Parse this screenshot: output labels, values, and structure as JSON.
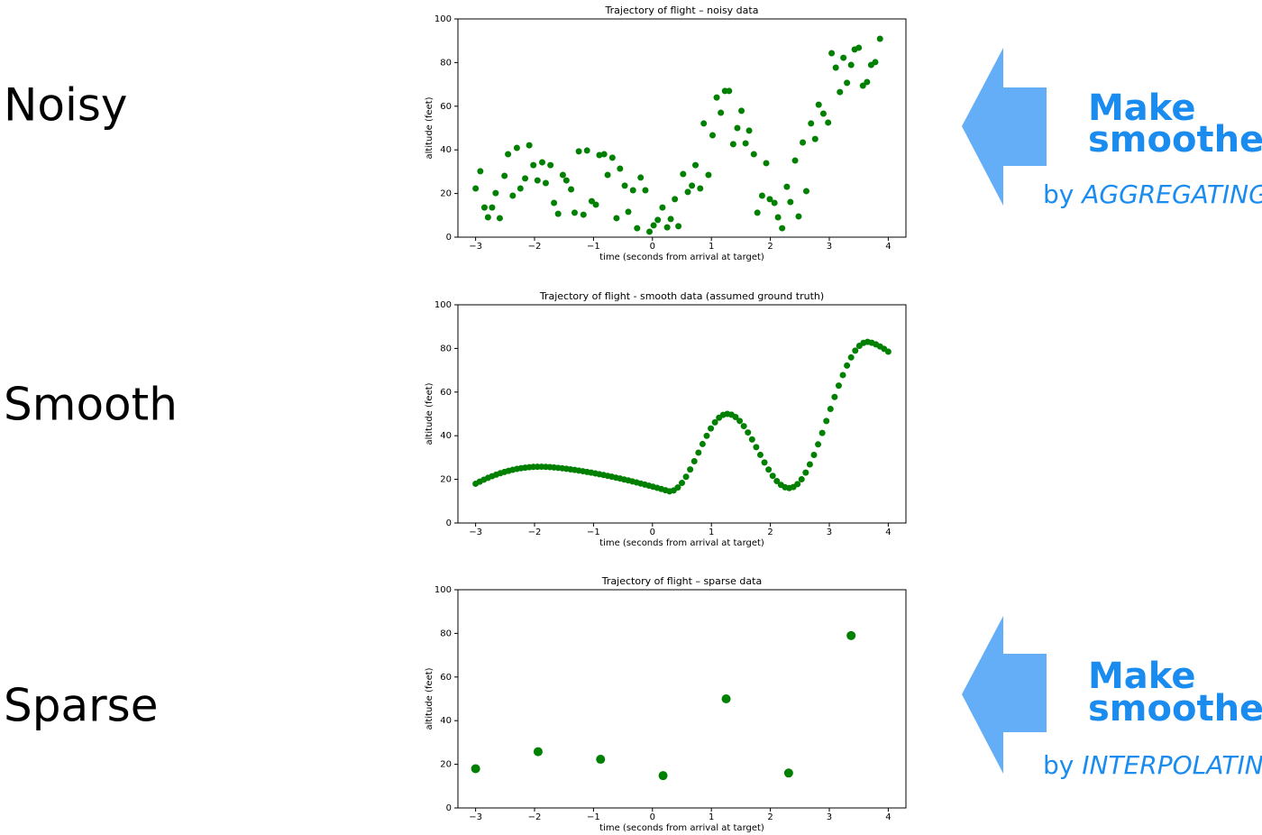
{
  "labels": [
    "Noisy",
    "Smooth",
    "Sparse"
  ],
  "callouts": [
    {
      "line1": "Make",
      "line2": "smoother",
      "by": "by",
      "method": "AGGREGATING"
    },
    {
      "line1": "Make",
      "line2": "smoother",
      "by": "by",
      "method": "INTERPOLATING"
    }
  ],
  "chart_data": [
    {
      "type": "scatter",
      "title": "Trajectory of flight  –  noisy data",
      "x_label": "time (seconds from arrival at target)",
      "y_label": "altitude (feet)",
      "color": "#008000",
      "xlim": [
        -3.3,
        4.3
      ],
      "ylim": [
        0,
        100
      ],
      "xticks": [
        {
          "value": -3,
          "label": "−3"
        },
        {
          "value": -2,
          "label": "−2"
        },
        {
          "value": -1,
          "label": "−1"
        },
        0,
        1,
        2,
        3,
        4
      ],
      "yticks": [
        0,
        20,
        40,
        60,
        80,
        100
      ],
      "x": [
        -3.0,
        -2.92,
        -2.85,
        -2.79,
        -2.72,
        -2.66,
        -2.59,
        -2.51,
        -2.45,
        -2.37,
        -2.3,
        -2.24,
        -2.16,
        -2.09,
        -2.02,
        -1.95,
        -1.87,
        -1.81,
        -1.73,
        -1.67,
        -1.6,
        -1.52,
        -1.46,
        -1.38,
        -1.32,
        -1.25,
        -1.17,
        -1.11,
        -1.03,
        -0.96,
        -0.9,
        -0.82,
        -0.76,
        -0.68,
        -0.61,
        -0.55,
        -0.47,
        -0.41,
        -0.33,
        -0.26,
        -0.2,
        -0.12,
        -0.05,
        0.02,
        0.09,
        0.17,
        0.25,
        0.31,
        0.38,
        0.44,
        0.52,
        0.6,
        0.67,
        0.73,
        0.81,
        0.87,
        0.95,
        1.02,
        1.09,
        1.16,
        1.23,
        1.3,
        1.37,
        1.44,
        1.51,
        1.58,
        1.64,
        1.72,
        1.78,
        1.86,
        1.93,
        1.99,
        2.07,
        2.13,
        2.2,
        2.28,
        2.34,
        2.42,
        2.48,
        2.55,
        2.61,
        2.69,
        2.76,
        2.82,
        2.9,
        2.98,
        3.04,
        3.11,
        3.18,
        3.24,
        3.3,
        3.37,
        3.43,
        3.5,
        3.57,
        3.64,
        3.71,
        3.78,
        3.86
      ],
      "values": [
        22.3,
        30.2,
        13.6,
        9.1,
        13.6,
        20.2,
        8.7,
        28.1,
        38,
        19,
        40.9,
        22.3,
        26.9,
        42.1,
        33,
        26,
        34.3,
        24.8,
        33,
        15.7,
        10.7,
        28.5,
        26,
        21.9,
        11.2,
        39.3,
        10.3,
        39.7,
        16.5,
        14.9,
        37.6,
        38,
        28.5,
        36.4,
        8.7,
        31.4,
        23.6,
        11.6,
        21.5,
        4.1,
        27.3,
        21.5,
        2.5,
        5.4,
        7.9,
        13.6,
        4.5,
        8.3,
        17.4,
        5,
        28.9,
        20.7,
        23.6,
        33,
        22.3,
        52.1,
        28.5,
        46.7,
        64,
        57,
        67,
        67,
        42.6,
        50,
        57.9,
        43,
        48.8,
        38,
        11.2,
        19,
        33.9,
        17.4,
        15.7,
        9.1,
        4.1,
        23.1,
        16.1,
        35.1,
        9.5,
        43.4,
        21.1,
        52.1,
        45,
        60.7,
        56.6,
        52.5,
        84.3,
        77.7,
        66.5,
        82.2,
        70.7,
        78.9,
        86,
        86.8,
        69.4,
        71.1,
        78.9,
        80.2,
        90.9
      ]
    },
    {
      "type": "scatter",
      "title": "Trajectory of flight - smooth data (assumed ground truth)",
      "x_label": "time (seconds from arrival at target)",
      "y_label": "altitude (feet)",
      "color": "#008000",
      "xlim": [
        -3.3,
        4.3
      ],
      "ylim": [
        0,
        100
      ],
      "xticks": [
        {
          "value": -3,
          "label": "−3"
        },
        {
          "value": -2,
          "label": "−2"
        },
        {
          "value": -1,
          "label": "−1"
        },
        0,
        1,
        2,
        3,
        4
      ],
      "yticks": [
        0,
        20,
        40,
        60,
        80,
        100
      ],
      "x": [
        -3.0,
        -2.93,
        -2.86,
        -2.79,
        -2.72,
        -2.65,
        -2.58,
        -2.51,
        -2.44,
        -2.37,
        -2.3,
        -2.23,
        -2.16,
        -2.09,
        -2.02,
        -1.95,
        -1.88,
        -1.81,
        -1.74,
        -1.67,
        -1.6,
        -1.53,
        -1.46,
        -1.39,
        -1.32,
        -1.25,
        -1.18,
        -1.11,
        -1.04,
        -0.97,
        -0.9,
        -0.83,
        -0.76,
        -0.69,
        -0.62,
        -0.55,
        -0.48,
        -0.41,
        -0.34,
        -0.27,
        -0.2,
        -0.13,
        -0.06,
        0.01,
        0.08,
        0.15,
        0.22,
        0.29,
        0.36,
        0.43,
        0.5,
        0.57,
        0.64,
        0.71,
        0.78,
        0.85,
        0.92,
        0.99,
        1.06,
        1.13,
        1.2,
        1.27,
        1.34,
        1.41,
        1.48,
        1.55,
        1.62,
        1.69,
        1.76,
        1.83,
        1.9,
        1.97,
        2.04,
        2.11,
        2.18,
        2.25,
        2.32,
        2.39,
        2.46,
        2.53,
        2.6,
        2.67,
        2.74,
        2.81,
        2.88,
        2.95,
        3.02,
        3.09,
        3.16,
        3.23,
        3.3,
        3.37,
        3.44,
        3.51,
        3.58,
        3.65,
        3.72,
        3.79,
        3.86,
        3.93,
        4.0
      ],
      "values": [
        18.0,
        18.96,
        19.86,
        20.69,
        21.46,
        22.17,
        22.82,
        23.4,
        23.92,
        24.37,
        24.77,
        25.1,
        25.36,
        25.57,
        25.71,
        25.78,
        25.8,
        25.73,
        25.61,
        25.46,
        25.28,
        25.07,
        24.84,
        24.59,
        24.32,
        24.04,
        23.73,
        23.41,
        23.08,
        22.74,
        22.37,
        21.99,
        21.61,
        21.21,
        20.79,
        20.38,
        19.95,
        19.51,
        19.04,
        18.58,
        18.1,
        17.62,
        17.12,
        16.61,
        16.1,
        15.58,
        15.04,
        14.5,
        14.94,
        16.26,
        18.37,
        21.17,
        24.55,
        28.31,
        32.25,
        36.19,
        39.95,
        43.33,
        46.13,
        48.23,
        49.56,
        50,
        49.63,
        48.54,
        46.77,
        44.39,
        41.5,
        38.27,
        34.77,
        31.23,
        27.73,
        24.5,
        21.61,
        19.23,
        17.46,
        16.37,
        16,
        16.47,
        17.81,
        20.02,
        23.1,
        26.85,
        31.21,
        36.03,
        41.26,
        46.75,
        52.25,
        57.74,
        62.97,
        67.79,
        72.15,
        75.9,
        78.98,
        81.19,
        82.53,
        83,
        82.6,
        81.86,
        80.91,
        79.78,
        78.5
      ]
    },
    {
      "type": "scatter",
      "title": "Trajectory of flight  –  sparse data",
      "x_label": "time (seconds from arrival at target)",
      "y_label": "altitude (feet)",
      "color": "#008000",
      "xlim": [
        -3.3,
        4.3
      ],
      "ylim": [
        0,
        100
      ],
      "xticks": [
        {
          "value": -3,
          "label": "−3"
        },
        {
          "value": -2,
          "label": "−2"
        },
        {
          "value": -1,
          "label": "−1"
        },
        0,
        1,
        2,
        3,
        4
      ],
      "yticks": [
        0,
        20,
        40,
        60,
        80,
        100
      ],
      "x": [
        -3.0,
        -1.94,
        -0.88,
        0.18,
        1.25,
        2.31,
        3.37
      ],
      "values": [
        18,
        25.8,
        22.3,
        14.8,
        50,
        16,
        79
      ]
    }
  ]
}
